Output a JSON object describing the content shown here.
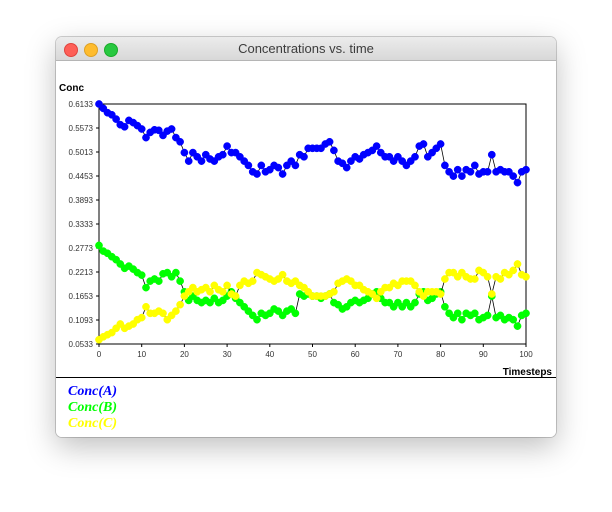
{
  "window": {
    "title": "Concentrations vs. time"
  },
  "colors": {
    "seriesA": "#0000ff",
    "seriesB": "#00ff00",
    "seriesC": "#ffff00"
  },
  "chart_data": {
    "type": "line",
    "ylabel": "Conc",
    "xlabel": "Timesteps",
    "xlim": [
      0,
      100
    ],
    "ylim": [
      0.0533,
      0.6133
    ],
    "xticks": [
      0,
      10,
      20,
      30,
      40,
      50,
      60,
      70,
      80,
      90,
      100
    ],
    "yticks": [
      "0.6133",
      "0.5573",
      "0.5013",
      "0.4453",
      "0.3893",
      "0.3333",
      "0.2773",
      "0.2213",
      "0.1653",
      "0.1093",
      "0.0533"
    ],
    "grid": false,
    "legend": "bottom-left",
    "series": [
      {
        "name": "Conc(A)",
        "values": [
          0.6133,
          0.603,
          0.593,
          0.588,
          0.578,
          0.565,
          0.56,
          0.575,
          0.57,
          0.563,
          0.555,
          0.535,
          0.547,
          0.553,
          0.552,
          0.54,
          0.55,
          0.555,
          0.535,
          0.525,
          0.5,
          0.48,
          0.5,
          0.49,
          0.48,
          0.495,
          0.485,
          0.48,
          0.49,
          0.495,
          0.515,
          0.5,
          0.5,
          0.49,
          0.48,
          0.47,
          0.455,
          0.45,
          0.47,
          0.455,
          0.46,
          0.47,
          0.465,
          0.45,
          0.47,
          0.48,
          0.47,
          0.495,
          0.49,
          0.51,
          0.51,
          0.51,
          0.51,
          0.52,
          0.525,
          0.505,
          0.48,
          0.475,
          0.465,
          0.48,
          0.49,
          0.485,
          0.495,
          0.5,
          0.505,
          0.515,
          0.5,
          0.49,
          0.49,
          0.48,
          0.49,
          0.48,
          0.47,
          0.48,
          0.49,
          0.515,
          0.52,
          0.49,
          0.5,
          0.51,
          0.52,
          0.47,
          0.455,
          0.445,
          0.46,
          0.445,
          0.46,
          0.455,
          0.47,
          0.45,
          0.455,
          0.455,
          0.495,
          0.455,
          0.46,
          0.455,
          0.455,
          0.445,
          0.43,
          0.455,
          0.46
        ]
      },
      {
        "name": "Conc(B)",
        "values": [
          0.2833,
          0.27,
          0.265,
          0.257,
          0.25,
          0.24,
          0.23,
          0.235,
          0.228,
          0.22,
          0.214,
          0.185,
          0.2,
          0.205,
          0.2,
          0.217,
          0.22,
          0.21,
          0.22,
          0.2,
          0.175,
          0.155,
          0.165,
          0.155,
          0.15,
          0.155,
          0.15,
          0.16,
          0.15,
          0.155,
          0.165,
          0.175,
          0.16,
          0.15,
          0.14,
          0.13,
          0.12,
          0.11,
          0.125,
          0.12,
          0.125,
          0.135,
          0.13,
          0.12,
          0.13,
          0.135,
          0.125,
          0.17,
          0.165,
          0.17,
          0.165,
          0.165,
          0.16,
          0.165,
          0.17,
          0.15,
          0.145,
          0.135,
          0.14,
          0.15,
          0.155,
          0.15,
          0.155,
          0.16,
          0.17,
          0.175,
          0.16,
          0.15,
          0.15,
          0.14,
          0.15,
          0.14,
          0.15,
          0.14,
          0.15,
          0.17,
          0.175,
          0.155,
          0.16,
          0.17,
          0.175,
          0.14,
          0.125,
          0.115,
          0.125,
          0.11,
          0.125,
          0.12,
          0.125,
          0.11,
          0.115,
          0.12,
          0.165,
          0.115,
          0.12,
          0.11,
          0.115,
          0.11,
          0.095,
          0.12,
          0.125
        ]
      },
      {
        "name": "Conc(C)",
        "values": [
          0.0633,
          0.07,
          0.075,
          0.08,
          0.09,
          0.1,
          0.09,
          0.095,
          0.1,
          0.11,
          0.115,
          0.14,
          0.125,
          0.125,
          0.13,
          0.125,
          0.11,
          0.12,
          0.13,
          0.145,
          0.165,
          0.175,
          0.185,
          0.175,
          0.18,
          0.185,
          0.175,
          0.19,
          0.18,
          0.175,
          0.19,
          0.17,
          0.165,
          0.19,
          0.2,
          0.195,
          0.2,
          0.22,
          0.215,
          0.21,
          0.205,
          0.2,
          0.205,
          0.215,
          0.2,
          0.195,
          0.2,
          0.19,
          0.185,
          0.175,
          0.165,
          0.165,
          0.165,
          0.165,
          0.17,
          0.175,
          0.195,
          0.2,
          0.205,
          0.2,
          0.19,
          0.19,
          0.18,
          0.175,
          0.17,
          0.16,
          0.175,
          0.185,
          0.185,
          0.195,
          0.19,
          0.2,
          0.2,
          0.2,
          0.19,
          0.175,
          0.165,
          0.175,
          0.175,
          0.175,
          0.17,
          0.205,
          0.22,
          0.22,
          0.21,
          0.22,
          0.21,
          0.205,
          0.205,
          0.225,
          0.22,
          0.21,
          0.17,
          0.21,
          0.205,
          0.22,
          0.215,
          0.225,
          0.24,
          0.215,
          0.21
        ]
      }
    ]
  }
}
